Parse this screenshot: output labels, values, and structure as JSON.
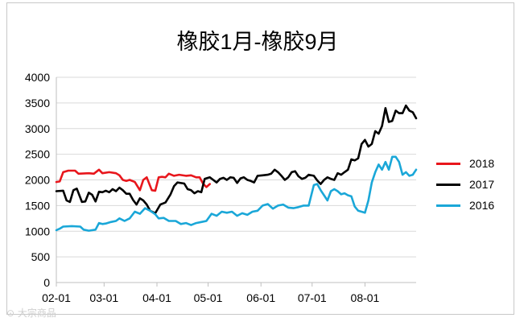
{
  "chart_data": {
    "type": "line",
    "title": "橡胶1月-橡胶9月",
    "xlabel": "",
    "ylabel": "",
    "ylim": [
      0,
      4000
    ],
    "yticks": [
      0,
      500,
      1000,
      1500,
      2000,
      2500,
      3000,
      3500,
      4000
    ],
    "xlim": [
      "02-01",
      "08-31"
    ],
    "xticks": [
      "02-01",
      "03-01",
      "04-01",
      "05-01",
      "06-01",
      "07-01",
      "08-01"
    ],
    "grid": "horizontal",
    "legend_position": "right",
    "series": [
      {
        "name": "2018",
        "color": "#e8161c",
        "points": [
          [
            "02-01",
            1960
          ],
          [
            "02-03",
            1970
          ],
          [
            "02-05",
            2150
          ],
          [
            "02-08",
            2180
          ],
          [
            "02-12",
            2180
          ],
          [
            "02-14",
            2120
          ],
          [
            "02-20",
            2130
          ],
          [
            "02-23",
            2120
          ],
          [
            "02-26",
            2200
          ],
          [
            "02-28",
            2130
          ],
          [
            "03-04",
            2150
          ],
          [
            "03-08",
            2130
          ],
          [
            "03-10",
            2090
          ],
          [
            "03-12",
            2000
          ],
          [
            "03-14",
            1980
          ],
          [
            "03-16",
            2000
          ],
          [
            "03-19",
            1960
          ],
          [
            "03-22",
            1800
          ],
          [
            "03-24",
            2000
          ],
          [
            "03-26",
            2050
          ],
          [
            "03-29",
            1800
          ],
          [
            "03-31",
            1790
          ],
          [
            "04-02",
            2050
          ],
          [
            "04-04",
            2060
          ],
          [
            "04-06",
            2050
          ],
          [
            "04-08",
            2120
          ],
          [
            "04-11",
            2080
          ],
          [
            "04-14",
            2100
          ],
          [
            "04-18",
            2080
          ],
          [
            "04-21",
            2090
          ],
          [
            "04-24",
            2050
          ],
          [
            "04-26",
            2050
          ],
          [
            "04-28",
            1930
          ],
          [
            "04-30",
            1860
          ],
          [
            "05-02",
            1920
          ]
        ]
      },
      {
        "name": "2017",
        "color": "#000000",
        "points": [
          [
            "02-01",
            1780
          ],
          [
            "02-05",
            1790
          ],
          [
            "02-07",
            1600
          ],
          [
            "02-09",
            1570
          ],
          [
            "02-11",
            1800
          ],
          [
            "02-13",
            1830
          ],
          [
            "02-16",
            1570
          ],
          [
            "02-18",
            1580
          ],
          [
            "02-20",
            1750
          ],
          [
            "02-22",
            1710
          ],
          [
            "02-24",
            1580
          ],
          [
            "02-26",
            1770
          ],
          [
            "02-28",
            1760
          ],
          [
            "03-02",
            1790
          ],
          [
            "03-04",
            1760
          ],
          [
            "03-06",
            1820
          ],
          [
            "03-08",
            1780
          ],
          [
            "03-10",
            1850
          ],
          [
            "03-12",
            1800
          ],
          [
            "03-14",
            1730
          ],
          [
            "03-16",
            1730
          ],
          [
            "03-18",
            1610
          ],
          [
            "03-20",
            1520
          ],
          [
            "03-22",
            1640
          ],
          [
            "03-24",
            1600
          ],
          [
            "03-26",
            1520
          ],
          [
            "03-28",
            1400
          ],
          [
            "03-31",
            1350
          ],
          [
            "04-03",
            1520
          ],
          [
            "04-06",
            1560
          ],
          [
            "04-09",
            1720
          ],
          [
            "04-11",
            1880
          ],
          [
            "04-13",
            1950
          ],
          [
            "04-17",
            1930
          ],
          [
            "04-19",
            1820
          ],
          [
            "04-21",
            1800
          ],
          [
            "04-23",
            1740
          ],
          [
            "04-25",
            1780
          ],
          [
            "04-27",
            1760
          ],
          [
            "04-29",
            2020
          ],
          [
            "05-02",
            2050
          ],
          [
            "05-04",
            2000
          ],
          [
            "05-06",
            1950
          ],
          [
            "05-08",
            2020
          ],
          [
            "05-10",
            2040
          ],
          [
            "05-12",
            2000
          ],
          [
            "05-14",
            2050
          ],
          [
            "05-16",
            2040
          ],
          [
            "05-18",
            1940
          ],
          [
            "05-20",
            2030
          ],
          [
            "05-22",
            2050
          ],
          [
            "05-24",
            2000
          ],
          [
            "05-26",
            1980
          ],
          [
            "05-28",
            1950
          ],
          [
            "05-30",
            2080
          ],
          [
            "06-02",
            2090
          ],
          [
            "06-05",
            2100
          ],
          [
            "06-07",
            2120
          ],
          [
            "06-09",
            2200
          ],
          [
            "06-11",
            2150
          ],
          [
            "06-13",
            2080
          ],
          [
            "06-15",
            2000
          ],
          [
            "06-17",
            2050
          ],
          [
            "06-19",
            2150
          ],
          [
            "06-21",
            2170
          ],
          [
            "06-23",
            2070
          ],
          [
            "06-25",
            2020
          ],
          [
            "06-27",
            2040
          ],
          [
            "06-29",
            2100
          ],
          [
            "07-02",
            2080
          ],
          [
            "07-04",
            1990
          ],
          [
            "07-06",
            1920
          ],
          [
            "07-08",
            2000
          ],
          [
            "07-10",
            2050
          ],
          [
            "07-12",
            2020
          ],
          [
            "07-14",
            2000
          ],
          [
            "07-16",
            2130
          ],
          [
            "07-18",
            2100
          ],
          [
            "07-20",
            2150
          ],
          [
            "07-22",
            2200
          ],
          [
            "07-24",
            2400
          ],
          [
            "07-26",
            2380
          ],
          [
            "07-28",
            2420
          ],
          [
            "07-30",
            2700
          ],
          [
            "08-01",
            2780
          ],
          [
            "08-03",
            2650
          ],
          [
            "08-05",
            2700
          ],
          [
            "08-07",
            2950
          ],
          [
            "08-09",
            2900
          ],
          [
            "08-11",
            3050
          ],
          [
            "08-13",
            3400
          ],
          [
            "08-15",
            3130
          ],
          [
            "08-17",
            3150
          ],
          [
            "08-19",
            3350
          ],
          [
            "08-21",
            3300
          ],
          [
            "08-23",
            3300
          ],
          [
            "08-25",
            3450
          ],
          [
            "08-27",
            3350
          ],
          [
            "08-29",
            3320
          ],
          [
            "08-31",
            3200
          ]
        ]
      },
      {
        "name": "2016",
        "color": "#1aa7d8",
        "points": [
          [
            "02-01",
            1020
          ],
          [
            "02-03",
            1050
          ],
          [
            "02-05",
            1090
          ],
          [
            "02-10",
            1100
          ],
          [
            "02-15",
            1090
          ],
          [
            "02-17",
            1030
          ],
          [
            "02-20",
            1010
          ],
          [
            "02-24",
            1030
          ],
          [
            "02-26",
            1160
          ],
          [
            "02-28",
            1140
          ],
          [
            "03-02",
            1150
          ],
          [
            "03-05",
            1180
          ],
          [
            "03-08",
            1200
          ],
          [
            "03-10",
            1250
          ],
          [
            "03-13",
            1200
          ],
          [
            "03-16",
            1250
          ],
          [
            "03-19",
            1380
          ],
          [
            "03-22",
            1340
          ],
          [
            "03-25",
            1450
          ],
          [
            "03-28",
            1400
          ],
          [
            "03-31",
            1330
          ],
          [
            "04-02",
            1250
          ],
          [
            "04-05",
            1260
          ],
          [
            "04-08",
            1200
          ],
          [
            "04-12",
            1200
          ],
          [
            "04-15",
            1140
          ],
          [
            "04-18",
            1160
          ],
          [
            "04-21",
            1120
          ],
          [
            "04-24",
            1160
          ],
          [
            "04-27",
            1180
          ],
          [
            "04-30",
            1200
          ],
          [
            "05-03",
            1340
          ],
          [
            "05-06",
            1300
          ],
          [
            "05-09",
            1380
          ],
          [
            "05-12",
            1360
          ],
          [
            "05-15",
            1380
          ],
          [
            "05-18",
            1300
          ],
          [
            "05-21",
            1350
          ],
          [
            "05-24",
            1320
          ],
          [
            "05-27",
            1380
          ],
          [
            "05-30",
            1400
          ],
          [
            "06-02",
            1500
          ],
          [
            "06-05",
            1530
          ],
          [
            "06-08",
            1440
          ],
          [
            "06-11",
            1500
          ],
          [
            "06-14",
            1520
          ],
          [
            "06-17",
            1460
          ],
          [
            "06-20",
            1450
          ],
          [
            "06-23",
            1470
          ],
          [
            "06-26",
            1500
          ],
          [
            "06-29",
            1500
          ],
          [
            "07-02",
            1900
          ],
          [
            "07-04",
            1920
          ],
          [
            "07-06",
            1800
          ],
          [
            "07-08",
            1700
          ],
          [
            "07-10",
            1600
          ],
          [
            "07-12",
            1780
          ],
          [
            "07-14",
            1820
          ],
          [
            "07-16",
            1780
          ],
          [
            "07-18",
            1720
          ],
          [
            "07-20",
            1740
          ],
          [
            "07-22",
            1700
          ],
          [
            "07-24",
            1680
          ],
          [
            "07-26",
            1480
          ],
          [
            "07-28",
            1400
          ],
          [
            "07-30",
            1380
          ],
          [
            "08-01",
            1360
          ],
          [
            "08-03",
            1600
          ],
          [
            "08-05",
            1950
          ],
          [
            "08-07",
            2150
          ],
          [
            "08-09",
            2300
          ],
          [
            "08-11",
            2200
          ],
          [
            "08-13",
            2350
          ],
          [
            "08-15",
            2200
          ],
          [
            "08-17",
            2450
          ],
          [
            "08-19",
            2450
          ],
          [
            "08-21",
            2350
          ],
          [
            "08-23",
            2100
          ],
          [
            "08-25",
            2150
          ],
          [
            "08-27",
            2080
          ],
          [
            "08-29",
            2100
          ],
          [
            "08-31",
            2200
          ]
        ]
      }
    ]
  }
}
